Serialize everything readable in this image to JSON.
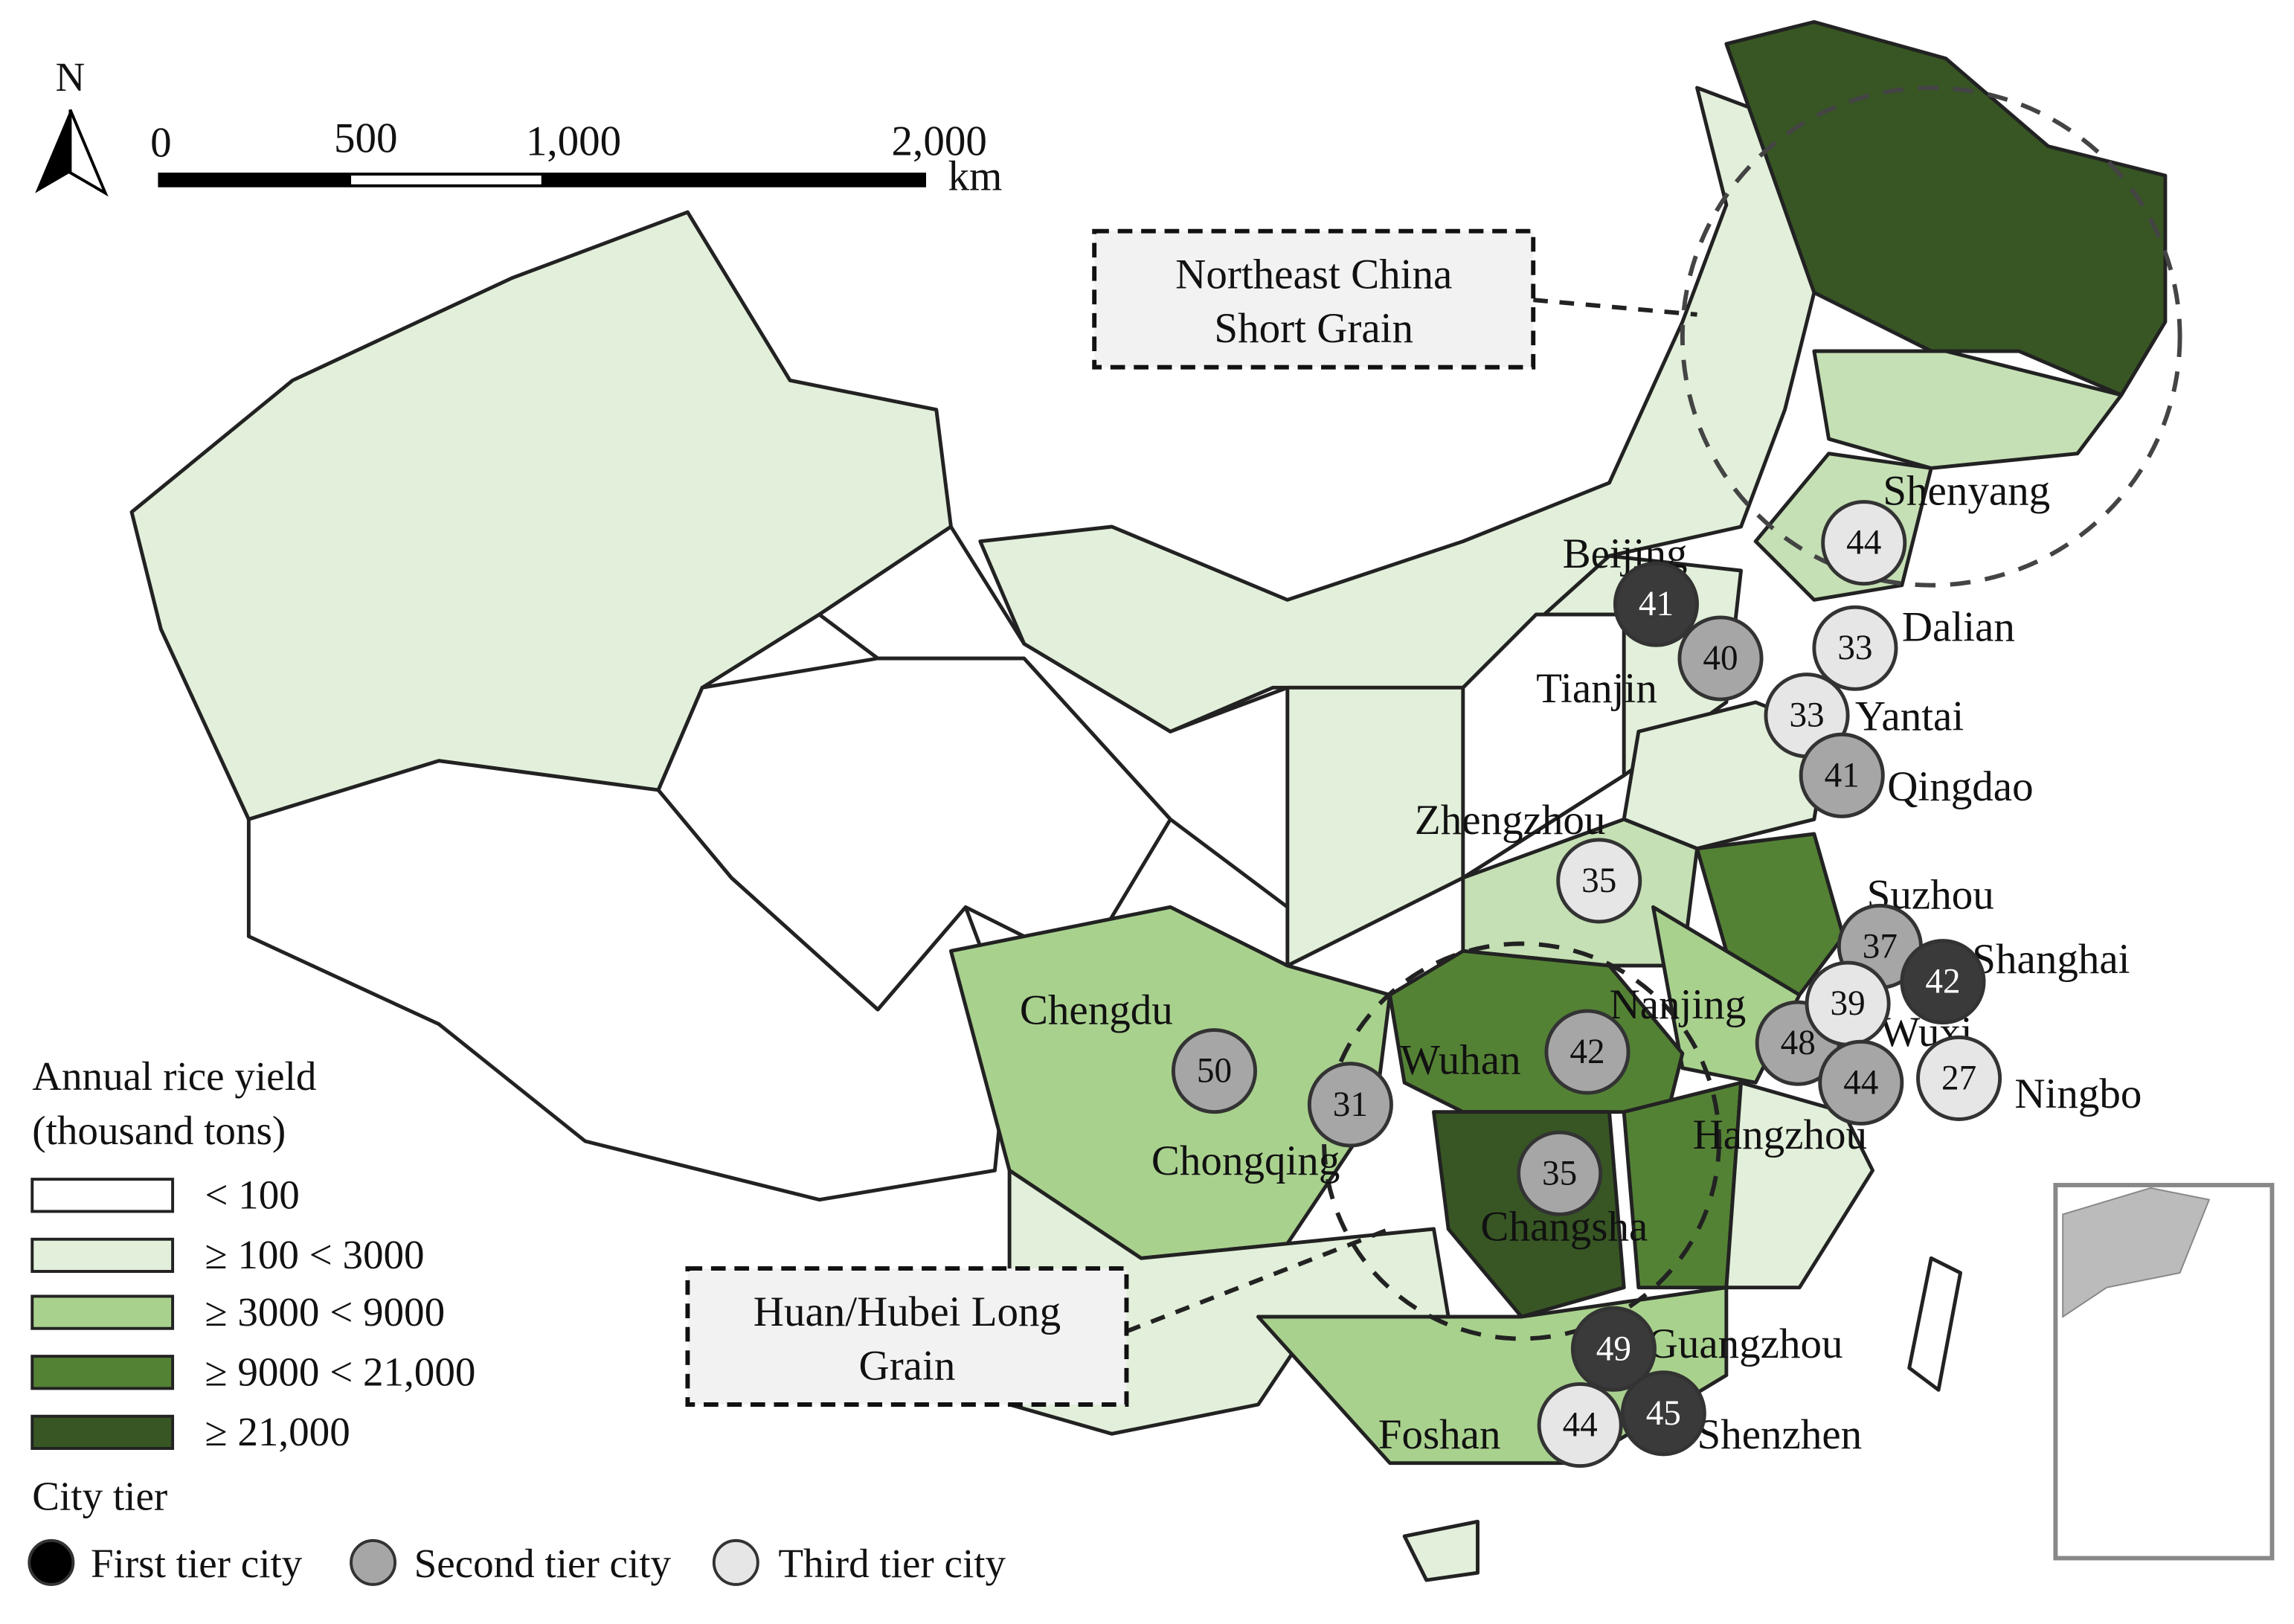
{
  "north": "N",
  "scale_bar": {
    "ticks": [
      "0",
      "500",
      "1,000",
      "2,000"
    ],
    "unit": "km"
  },
  "callouts": [
    {
      "lines": [
        "Northeast China",
        "Short Grain"
      ]
    },
    {
      "lines": [
        "Huan/Hubei Long",
        "Grain"
      ]
    }
  ],
  "legend": {
    "title": [
      "Annual rice yield",
      "(thousand tons)"
    ],
    "classes": [
      {
        "label": "< 100",
        "color": "#ffffff"
      },
      {
        "label": "≥ 100 < 3000",
        "color": "#e2efda"
      },
      {
        "label": "≥ 3000 < 9000",
        "color": "#a9d18e"
      },
      {
        "label": "≥ 9000 < 21,000",
        "color": "#548235"
      },
      {
        "label": "≥ 21,000",
        "color": "#375623"
      }
    ],
    "tier_title": "City tier",
    "tiers": [
      {
        "label": "First tier city",
        "color": "#000000"
      },
      {
        "label": "Second tier city",
        "color": "#a6a6a6"
      },
      {
        "label": "Third tier city",
        "color": "#e7e6e6"
      }
    ]
  },
  "cities": [
    {
      "name": "Shenyang",
      "value": 44,
      "color": "#e7e6e6"
    },
    {
      "name": "Beijing",
      "value": 41,
      "color": "#3a3a3a"
    },
    {
      "name": "Tianjin",
      "value": 40,
      "color": "#a6a6a6"
    },
    {
      "name": "Dalian",
      "value": 33,
      "color": "#e7e6e6"
    },
    {
      "name": "Yantai",
      "value": 33,
      "color": "#e7e6e6"
    },
    {
      "name": "Qingdao",
      "value": 41,
      "color": "#a6a6a6"
    },
    {
      "name": "Zhengzhou",
      "value": 35,
      "color": "#e7e6e6"
    },
    {
      "name": "Suzhou",
      "value": 37,
      "color": "#a6a6a6"
    },
    {
      "name": "Shanghai",
      "value": 42,
      "color": "#3a3a3a"
    },
    {
      "name": "Nanjing",
      "value": 48,
      "color": "#a6a6a6"
    },
    {
      "name": "Wuxi",
      "value": 39,
      "color": "#e7e6e6"
    },
    {
      "name": "Hangzhou",
      "value": 44,
      "color": "#a6a6a6"
    },
    {
      "name": "Ningbo",
      "value": 27,
      "color": "#e7e6e6"
    },
    {
      "name": "Chengdu",
      "value": 50,
      "color": "#a6a6a6"
    },
    {
      "name": "Chongqing",
      "value": 31,
      "color": "#a6a6a6"
    },
    {
      "name": "Wuhan",
      "value": 42,
      "color": "#a6a6a6"
    },
    {
      "name": "Changsha",
      "value": 35,
      "color": "#a6a6a6"
    },
    {
      "name": "Guangzhou",
      "value": 49,
      "color": "#3a3a3a"
    },
    {
      "name": "Shenzhen",
      "value": 45,
      "color": "#3a3a3a"
    },
    {
      "name": "Foshan",
      "value": 44,
      "color": "#e7e6e6"
    }
  ]
}
